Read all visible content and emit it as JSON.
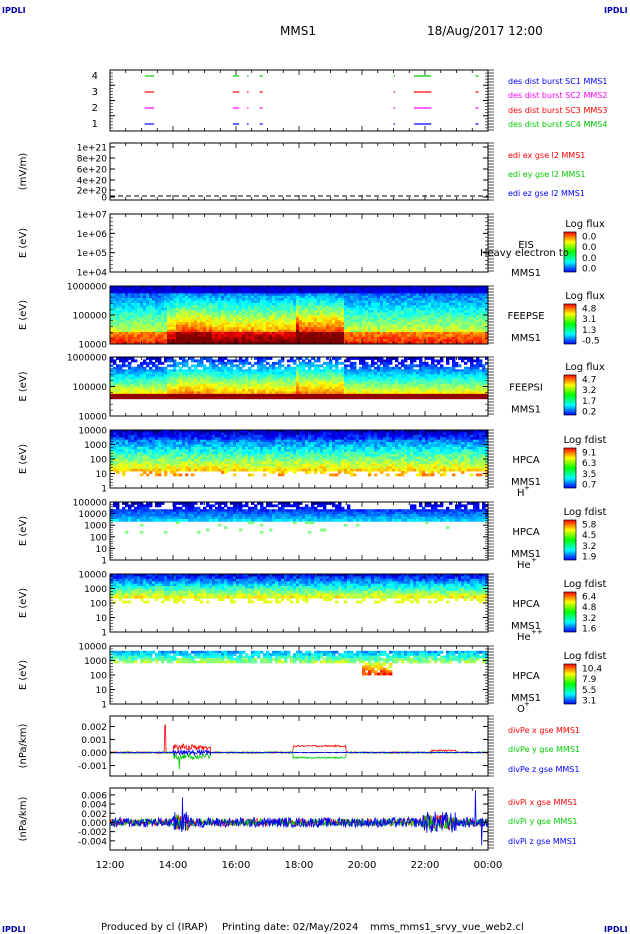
{
  "header": {
    "mission": "MMS1",
    "date_time": "18/Aug/2017 12:00",
    "corner_mark": "IPDLI"
  },
  "footer": {
    "produced_by": "Produced by cl (IRAP)",
    "printing_date": "Printing date: 02/May/2024",
    "file": "mms_mms1_srvy_vue_web2.cl"
  },
  "colors": {
    "red": "#ff0000",
    "green": "#00cc00",
    "blue": "#0000ff",
    "magenta": "#ff00ff",
    "label_blue": "#0000aa"
  },
  "time_axis": {
    "ticks": [
      "12:00",
      "14:00",
      "16:00",
      "18:00",
      "20:00",
      "22:00",
      "00:00"
    ],
    "start_hour": 12,
    "end_hour": 24
  },
  "chart_data": [
    {
      "type": "line",
      "id": "burst",
      "ylim": [
        0.5,
        4.5
      ],
      "tick_labels": [
        "4",
        "3",
        "2",
        "1"
      ],
      "legend": [
        {
          "name": "des dist burst SC1 MMS1",
          "color": "#0000ff"
        },
        {
          "name": "des dist burst SC2 MMS2",
          "color": "#ff00ff"
        },
        {
          "name": "des dist burst SC3 MMS3",
          "color": "#ff0000"
        },
        {
          "name": "des dist burst SC4 MMS4",
          "color": "#00cc00"
        }
      ],
      "intervals": [
        [
          13.1,
          13.4
        ],
        [
          15.9,
          16.1
        ],
        [
          16.35,
          16.4
        ],
        [
          16.75,
          16.85
        ],
        [
          21.0,
          21.02
        ],
        [
          21.65,
          22.2
        ],
        [
          23.6,
          23.7
        ]
      ]
    },
    {
      "type": "line",
      "id": "edi",
      "ylabel": "(mV/m)",
      "tick_labels": [
        "1e+21",
        "8e+20",
        "6e+20",
        "4e+20",
        "2e+20",
        "0"
      ],
      "legend": [
        {
          "name": "edi ex gse l2 MMS1",
          "color": "#ff0000"
        },
        {
          "name": "edi ey gse l2 MMS1",
          "color": "#00cc00"
        },
        {
          "name": "edi ez gse l2 MMS1",
          "color": "#0000ff"
        }
      ]
    },
    {
      "type": "heatmap",
      "id": "eis",
      "ylabel": "E (eV)",
      "tick_labels": [
        "1e+07",
        "1e+06",
        "1e+05",
        "1e+04"
      ],
      "instrument": "EIS",
      "spacecraft": "MMS1",
      "overlay": "Heavy electron to",
      "colorbar_title": "Log flux",
      "colorbar_ticks": [
        "0.0",
        "0.0",
        "0.0",
        "0.0"
      ]
    },
    {
      "type": "heatmap",
      "id": "feepse",
      "ylabel": "E (eV)",
      "tick_labels": [
        "1000000",
        "100000",
        "10000"
      ],
      "instrument": "FEEPSE",
      "spacecraft": "MMS1",
      "colorbar_title": "Log flux",
      "colorbar_ticks": [
        "4.8",
        "3.1",
        "1.3",
        "-0.5"
      ]
    },
    {
      "type": "heatmap",
      "id": "feepsi",
      "ylabel": "E (eV)",
      "tick_labels": [
        "1000000",
        "100000",
        "10000"
      ],
      "instrument": "FEEPSI",
      "spacecraft": "MMS1",
      "colorbar_title": "Log flux",
      "colorbar_ticks": [
        "4.7",
        "3.2",
        "1.7",
        "0.2"
      ]
    },
    {
      "type": "heatmap",
      "id": "hpca_h",
      "ylabel": "E (eV)",
      "tick_labels": [
        "10000",
        "1000",
        "100",
        "10",
        "1"
      ],
      "instrument": "HPCA",
      "spacecraft": "MMS1",
      "species": "H",
      "charge": "+",
      "colorbar_title": "Log fdist",
      "colorbar_ticks": [
        "9.1",
        "6.3",
        "3.5",
        "0.7"
      ]
    },
    {
      "type": "heatmap",
      "id": "hpca_he",
      "ylabel": "E (eV)",
      "tick_labels": [
        "100000",
        "10000",
        "1000",
        "100",
        "10",
        "1"
      ],
      "instrument": "HPCA",
      "spacecraft": "MMS1",
      "species": "He",
      "charge": "+",
      "colorbar_title": "Log fdist",
      "colorbar_ticks": [
        "5.8",
        "4.5",
        "3.2",
        "1.9"
      ]
    },
    {
      "type": "heatmap",
      "id": "hpca_hepp",
      "ylabel": "E (eV)",
      "tick_labels": [
        "10000",
        "1000",
        "100",
        "10",
        "1"
      ],
      "instrument": "HPCA",
      "spacecraft": "MMS1",
      "species": "He",
      "charge": "++",
      "colorbar_title": "Log fdist",
      "colorbar_ticks": [
        "6.4",
        "4.8",
        "3.2",
        "1.6"
      ]
    },
    {
      "type": "heatmap",
      "id": "hpca_o",
      "ylabel": "E (eV)",
      "tick_labels": [
        "10000",
        "1000",
        "100",
        "10",
        "1"
      ],
      "instrument": "HPCA",
      "spacecraft": "MMS1",
      "species": "O",
      "charge": "+",
      "colorbar_title": "Log fdist",
      "colorbar_ticks": [
        "10.4",
        "7.9",
        "5.5",
        "3.1"
      ]
    },
    {
      "type": "line",
      "id": "divpe",
      "ylabel": "(nPa/km)",
      "tick_labels": [
        "0.002",
        "0.001",
        "0.000",
        "-0.001"
      ],
      "ylim": [
        -0.0018,
        0.0028
      ],
      "legend": [
        {
          "name": "divPe x gse MMS1",
          "color": "#ff0000"
        },
        {
          "name": "divPe y gse MMS1",
          "color": "#00cc00"
        },
        {
          "name": "divPe z gse MMS1",
          "color": "#0000ff"
        }
      ]
    },
    {
      "type": "line",
      "id": "divpi",
      "ylabel": "(nPa/km)",
      "tick_labels": [
        "0.006",
        "0.004",
        "0.002",
        "0.000",
        "-0.002",
        "-0.004"
      ],
      "ylim": [
        -0.006,
        0.0075
      ],
      "legend": [
        {
          "name": "divPi x gse MMS1",
          "color": "#ff0000"
        },
        {
          "name": "divPi y gse MMS1",
          "color": "#00cc00"
        },
        {
          "name": "divPi z gse MMS1",
          "color": "#0000ff"
        }
      ]
    }
  ]
}
